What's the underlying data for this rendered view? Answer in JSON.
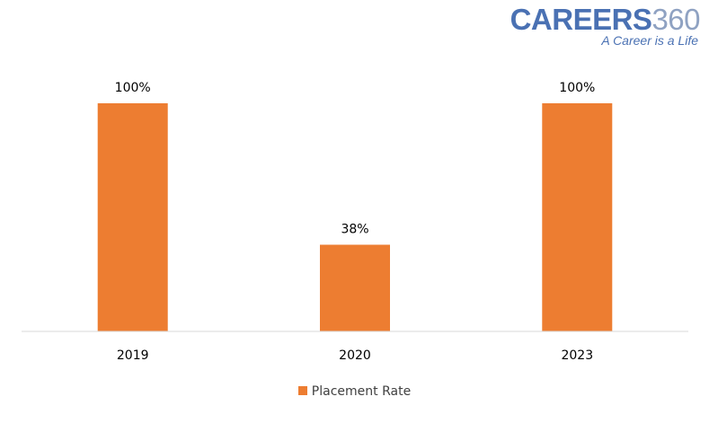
{
  "logo": {
    "word": "CAREERS",
    "number": "360",
    "tagline": "A Career is a Life"
  },
  "colors": {
    "bar": "#ed7d31",
    "axis": "#d9d9d9",
    "text": "#404040",
    "logo_blue": "#4a71b3"
  },
  "chart_data": {
    "type": "bar",
    "categories": [
      "2019",
      "2020",
      "2023"
    ],
    "series": [
      {
        "name": "Placement Rate",
        "values": [
          100,
          38,
          100
        ],
        "labels": [
          "100%",
          "38%",
          "100%"
        ]
      }
    ],
    "ylim": [
      0,
      100
    ],
    "grid": false,
    "legend_position": "bottom"
  }
}
